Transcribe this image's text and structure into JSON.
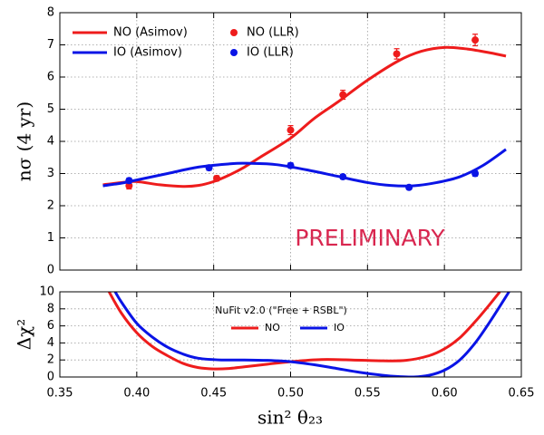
{
  "chart_data": [
    {
      "type": "line",
      "ylabel": "nσ  (4 yr)",
      "annotation": "PRELIMINARY",
      "annotation_color": "#d9264f",
      "xlim": [
        0.35,
        0.65
      ],
      "xticks": [
        0.35,
        0.4,
        0.45,
        0.5,
        0.55,
        0.6,
        0.65
      ],
      "ylim": [
        0,
        8
      ],
      "yticks": [
        0,
        1,
        2,
        3,
        4,
        5,
        6,
        7,
        8
      ],
      "grid": true,
      "series": [
        {
          "name": "NO (Asimov)",
          "color": "#ee1c1c",
          "mode": "line",
          "x": [
            0.378,
            0.39,
            0.4,
            0.415,
            0.43,
            0.44,
            0.45,
            0.46,
            0.47,
            0.48,
            0.5,
            0.515,
            0.53,
            0.55,
            0.57,
            0.585,
            0.6,
            0.615,
            0.63,
            0.64
          ],
          "values": [
            2.65,
            2.72,
            2.75,
            2.65,
            2.6,
            2.63,
            2.75,
            2.95,
            3.2,
            3.5,
            4.1,
            4.7,
            5.2,
            5.9,
            6.5,
            6.8,
            6.92,
            6.87,
            6.75,
            6.65
          ]
        },
        {
          "name": "IO (Asimov)",
          "color": "#0a14e6",
          "mode": "line",
          "x": [
            0.378,
            0.39,
            0.4,
            0.42,
            0.44,
            0.46,
            0.47,
            0.49,
            0.51,
            0.53,
            0.55,
            0.565,
            0.58,
            0.595,
            0.61,
            0.625,
            0.64
          ],
          "values": [
            2.62,
            2.7,
            2.8,
            3.0,
            3.2,
            3.3,
            3.32,
            3.28,
            3.12,
            2.92,
            2.72,
            2.63,
            2.62,
            2.72,
            2.9,
            3.25,
            3.75
          ]
        },
        {
          "name": "NO (LLR)",
          "color": "#ee1c1c",
          "mode": "points",
          "x": [
            0.395,
            0.452,
            0.5,
            0.534,
            0.569,
            0.62
          ],
          "values": [
            2.62,
            2.85,
            4.35,
            5.45,
            6.72,
            7.15
          ],
          "errors": [
            0.1,
            0.08,
            0.14,
            0.14,
            0.16,
            0.18
          ]
        },
        {
          "name": "IO (LLR)",
          "color": "#0a14e6",
          "mode": "points",
          "x": [
            0.395,
            0.447,
            0.5,
            0.534,
            0.577,
            0.62
          ],
          "values": [
            2.78,
            3.18,
            3.25,
            2.9,
            2.57,
            3.0
          ],
          "errors": [
            0.08,
            0.08,
            0.08,
            0.07,
            0.06,
            0.08
          ]
        }
      ]
    },
    {
      "type": "line",
      "xlabel": "sin² θ₂₃",
      "ylabel": "Δχ²",
      "legend_title": "NuFit v2.0 (\"Free + RSBL\")",
      "xlim": [
        0.35,
        0.65
      ],
      "xticks": [
        0.35,
        {
          "value": 0.4,
          "label": "0.40"
        },
        0.45,
        {
          "value": 0.5,
          "label": "0.50"
        },
        0.55,
        {
          "value": 0.6,
          "label": "0.60"
        },
        0.65
      ],
      "ylim": [
        0,
        10
      ],
      "yticks": [
        0,
        2,
        4,
        6,
        8,
        10
      ],
      "grid": true,
      "series": [
        {
          "name": "NO",
          "color": "#ee1c1c",
          "mode": "line",
          "x": [
            0.382,
            0.39,
            0.4,
            0.41,
            0.42,
            0.43,
            0.44,
            0.45,
            0.46,
            0.47,
            0.485,
            0.5,
            0.52,
            0.54,
            0.56,
            0.575,
            0.59,
            0.6,
            0.61,
            0.62,
            0.628,
            0.636
          ],
          "values": [
            10,
            7.5,
            5.2,
            3.6,
            2.5,
            1.6,
            1.1,
            0.95,
            1.0,
            1.2,
            1.5,
            1.8,
            2.05,
            2.0,
            1.9,
            1.95,
            2.5,
            3.3,
            4.6,
            6.5,
            8.2,
            10
          ]
        },
        {
          "name": "IO",
          "color": "#0a14e6",
          "mode": "line",
          "x": [
            0.386,
            0.39,
            0.4,
            0.41,
            0.42,
            0.43,
            0.44,
            0.455,
            0.47,
            0.485,
            0.5,
            0.515,
            0.53,
            0.545,
            0.56,
            0.57,
            0.58,
            0.59,
            0.6,
            0.61,
            0.62,
            0.63,
            0.642
          ],
          "values": [
            10,
            8.8,
            6.3,
            4.7,
            3.5,
            2.7,
            2.2,
            2.0,
            2.0,
            1.95,
            1.8,
            1.45,
            1.0,
            0.55,
            0.2,
            0.05,
            0.0,
            0.2,
            0.8,
            2.0,
            4.0,
            6.6,
            10
          ]
        }
      ]
    }
  ]
}
